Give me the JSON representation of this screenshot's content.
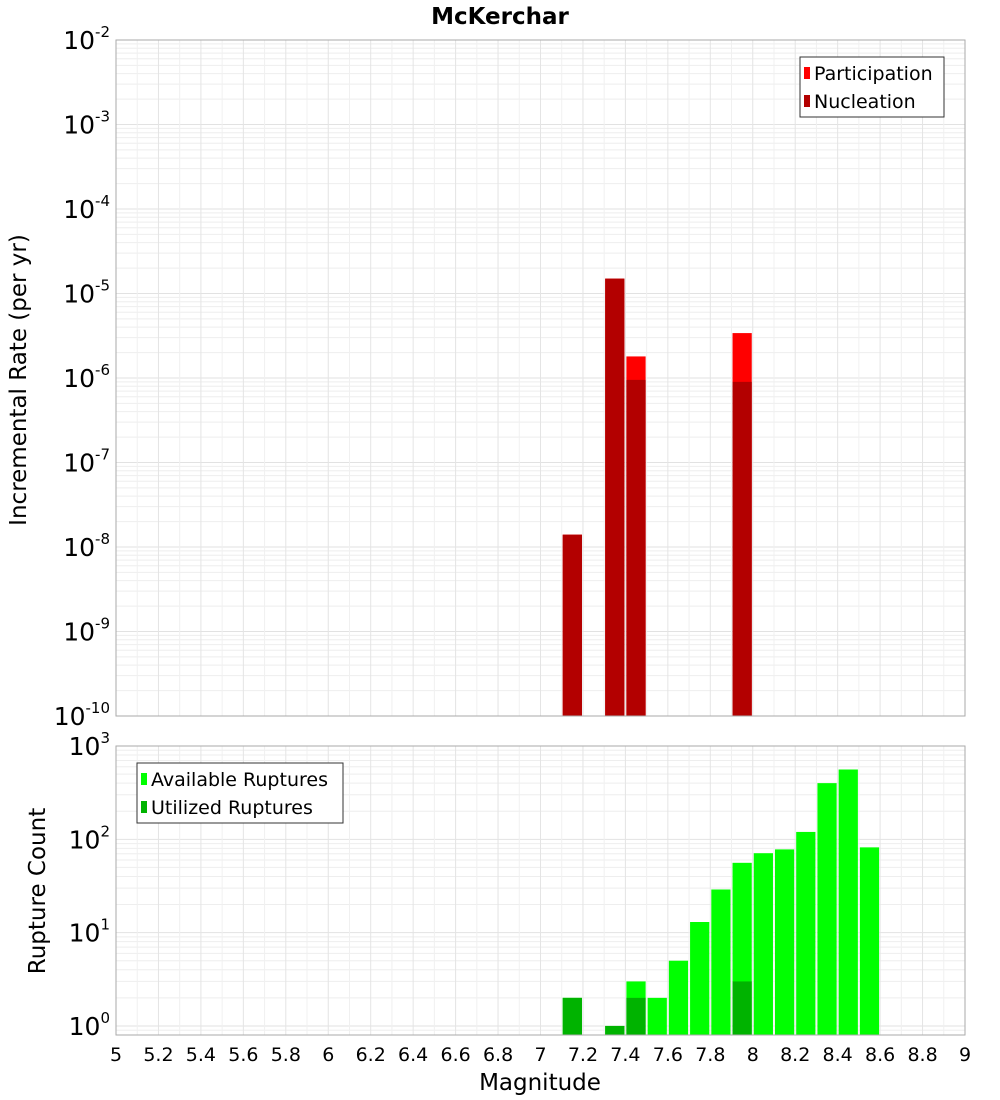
{
  "chart_data": [
    {
      "type": "bar",
      "title": "McKerchar",
      "xlabel": "",
      "ylabel": "Incremental Rate (per yr)",
      "yscale": "log",
      "ylim": [
        1e-10,
        0.01
      ],
      "xlim": [
        5,
        9
      ],
      "y_ticks": [
        {
          "base": "10",
          "exp": "-10",
          "value": 1e-10
        },
        {
          "base": "10",
          "exp": "-9",
          "value": 1e-09
        },
        {
          "base": "10",
          "exp": "-8",
          "value": 1e-08
        },
        {
          "base": "10",
          "exp": "-7",
          "value": 1e-07
        },
        {
          "base": "10",
          "exp": "-6",
          "value": 1e-06
        },
        {
          "base": "10",
          "exp": "-5",
          "value": 1e-05
        },
        {
          "base": "10",
          "exp": "-4",
          "value": 0.0001
        },
        {
          "base": "10",
          "exp": "-3",
          "value": 0.001
        },
        {
          "base": "10",
          "exp": "-2",
          "value": 0.01
        }
      ],
      "bar_width": 0.1,
      "legend": {
        "placement": "top-right",
        "entries": [
          "Participation",
          "Nucleation"
        ]
      },
      "series": [
        {
          "name": "Participation",
          "color": "#ff0000",
          "points": [
            {
              "x": 7.15,
              "y": 1.4e-08
            },
            {
              "x": 7.35,
              "y": 1.5e-05
            },
            {
              "x": 7.45,
              "y": 1.8e-06
            },
            {
              "x": 7.95,
              "y": 3.4e-06
            }
          ]
        },
        {
          "name": "Nucleation",
          "color": "#b30000",
          "points": [
            {
              "x": 7.15,
              "y": 1.4e-08
            },
            {
              "x": 7.35,
              "y": 1.5e-05
            },
            {
              "x": 7.45,
              "y": 9.5e-07
            },
            {
              "x": 7.95,
              "y": 9e-07
            }
          ]
        }
      ]
    },
    {
      "type": "bar",
      "title": "",
      "xlabel": "Magnitude",
      "ylabel": "Rupture Count",
      "yscale": "log",
      "ylim": [
        0.8,
        1000
      ],
      "xlim": [
        5,
        9
      ],
      "x_ticks": [
        "5",
        "5.2",
        "5.4",
        "5.6",
        "5.8",
        "6",
        "6.2",
        "6.4",
        "6.6",
        "6.8",
        "7",
        "7.2",
        "7.4",
        "7.6",
        "7.8",
        "8",
        "8.2",
        "8.4",
        "8.6",
        "8.8",
        "9"
      ],
      "y_ticks": [
        {
          "base": "10",
          "exp": "0",
          "value": 1
        },
        {
          "base": "10",
          "exp": "1",
          "value": 10
        },
        {
          "base": "10",
          "exp": "2",
          "value": 100
        },
        {
          "base": "10",
          "exp": "3",
          "value": 1000
        }
      ],
      "bar_width": 0.1,
      "legend": {
        "placement": "top-left",
        "entries": [
          "Available Ruptures",
          "Utilized Ruptures"
        ]
      },
      "series": [
        {
          "name": "Available Ruptures",
          "color": "#00ff00",
          "points": [
            {
              "x": 7.15,
              "y": 2
            },
            {
              "x": 7.35,
              "y": 1
            },
            {
              "x": 7.45,
              "y": 3
            },
            {
              "x": 7.55,
              "y": 2
            },
            {
              "x": 7.65,
              "y": 5
            },
            {
              "x": 7.75,
              "y": 13
            },
            {
              "x": 7.85,
              "y": 29
            },
            {
              "x": 7.95,
              "y": 56
            },
            {
              "x": 8.05,
              "y": 71
            },
            {
              "x": 8.15,
              "y": 78
            },
            {
              "x": 8.25,
              "y": 120
            },
            {
              "x": 8.35,
              "y": 400
            },
            {
              "x": 8.45,
              "y": 560
            },
            {
              "x": 8.55,
              "y": 82
            }
          ]
        },
        {
          "name": "Utilized Ruptures",
          "color": "#00b300",
          "points": [
            {
              "x": 7.15,
              "y": 2
            },
            {
              "x": 7.35,
              "y": 1
            },
            {
              "x": 7.45,
              "y": 2
            },
            {
              "x": 7.95,
              "y": 3
            }
          ]
        }
      ]
    }
  ]
}
